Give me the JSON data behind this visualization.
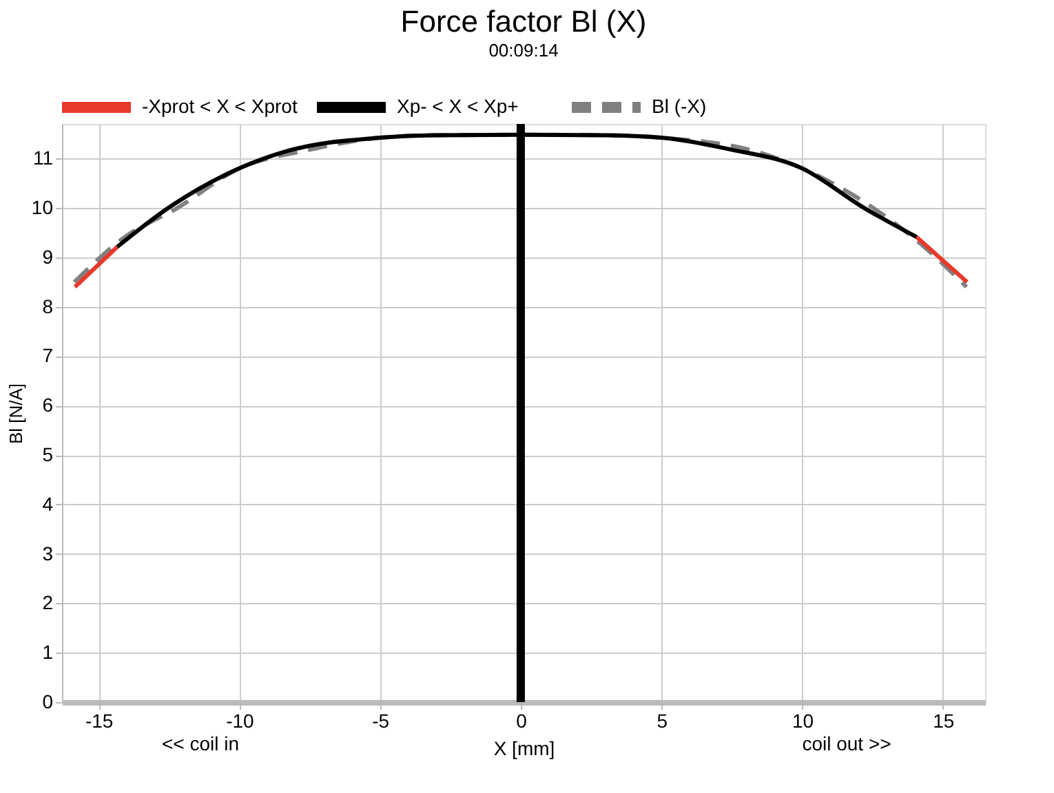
{
  "chart_data": {
    "type": "line",
    "title": "Force factor Bl (X)",
    "subtitle": "00:09:14",
    "xlabel": "X [mm]",
    "ylabel": "Bl [N/A]",
    "annotations": [
      "<< coil in",
      "coil out >>"
    ],
    "x": [
      -15.84,
      -14.34,
      -12.52,
      -10,
      -8.3,
      -5,
      -3.1,
      0,
      3.1,
      5,
      7.48,
      10,
      12.2,
      14.07,
      15.86
    ],
    "series": [
      {
        "name": "-Xprot < X < Xprot",
        "color": "#e8392b",
        "line_style": "solid",
        "values": [
          8.4,
          9.21,
          null,
          null,
          null,
          null,
          null,
          null,
          null,
          null,
          null,
          null,
          null,
          9.41,
          8.5
        ]
      },
      {
        "name": "Xp- < X < Xp+",
        "color": "#000000",
        "line_style": "solid",
        "values": [
          null,
          9.21,
          10.0,
          10.8,
          11.15,
          11.42,
          11.47,
          11.48,
          11.47,
          11.42,
          11.18,
          10.8,
          10.0,
          9.41,
          null
        ]
      },
      {
        "name": "Bl (-X)",
        "color": "#808080",
        "line_style": "dashed",
        "x": [
          -15.86,
          -14.07,
          -12.2,
          -10,
          -7.48,
          -5,
          -3.1,
          0,
          3.1,
          5,
          8.3,
          10,
          12.52,
          14.34,
          15.84
        ],
        "values": [
          8.5,
          9.41,
          10.0,
          10.8,
          11.18,
          11.42,
          11.47,
          11.48,
          11.47,
          11.42,
          11.15,
          10.8,
          10.0,
          9.21,
          8.4
        ]
      }
    ],
    "ref_lines": [
      {
        "axis": "x",
        "value": 0,
        "color": "#000000"
      }
    ],
    "xlim": [
      -16.3,
      16.5
    ],
    "xticks": [
      -15,
      -10,
      -5,
      0,
      5,
      10,
      15
    ],
    "ylim": [
      0,
      11.7
    ],
    "yticks": [
      0,
      1,
      2,
      3,
      4,
      5,
      6,
      7,
      8,
      9,
      10,
      11
    ],
    "grid": true,
    "legend": "top",
    "marker": "none"
  }
}
